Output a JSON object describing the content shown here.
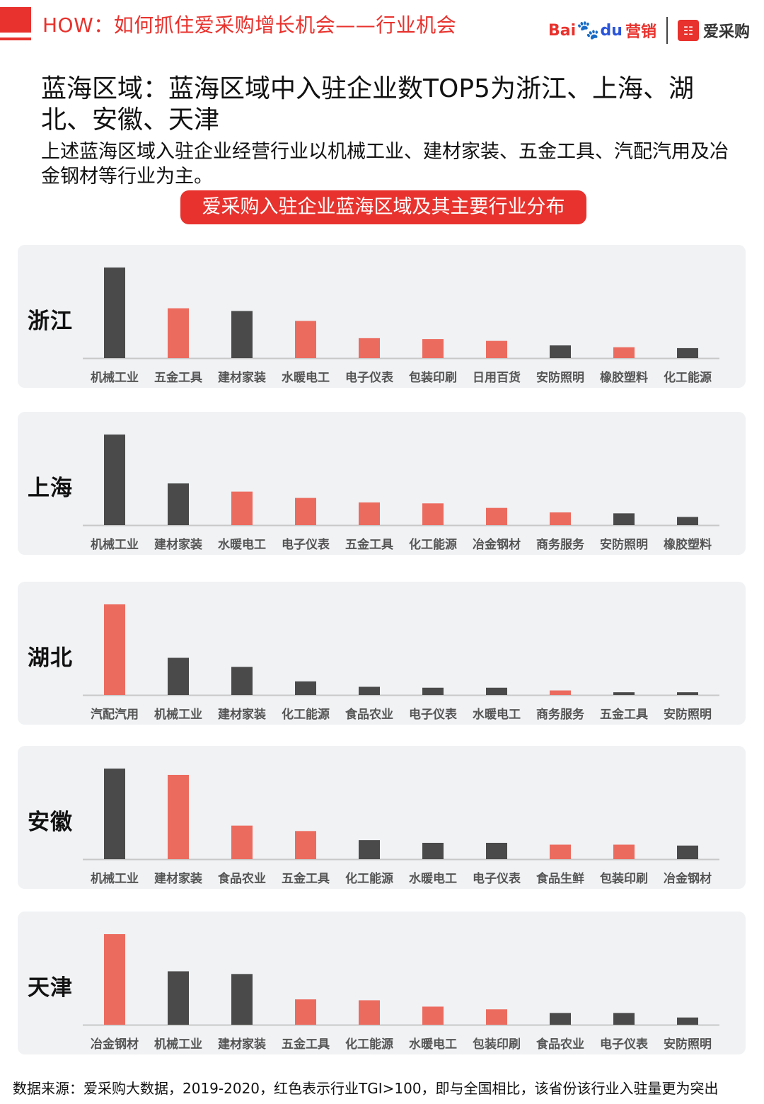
{
  "header": {
    "title": "HOW：如何抓住爱采购增长机会——行业机会",
    "baidu_logo_text": "Bai",
    "baidu_logo_du": "du",
    "baidu_logo_sub": "营销",
    "aicaigou_logo_text": "爱采购"
  },
  "main_title": "蓝海区域：蓝海区域中入驻企业数TOP5为浙江、上海、湖北、安徽、天津",
  "sub_text": "上述蓝海区域入驻企业经营行业以机械工业、建材家装、五金工具、汽配汽用及冶金钢材等行业为主。",
  "chart_heading": "爱采购入驻企业蓝海区域及其主要行业分布",
  "footnote": "数据来源：爱采购大数据，2019-2020，红色表示行业TGI>100，即与全国相比，该省份该行业入驻量更为突出",
  "colors": {
    "accent": "#e8322d",
    "highlight_bar": "#ec6b5f",
    "normal_bar": "#4a4a4a",
    "panel_bg": "#f0f2f4"
  },
  "chart_data": [
    {
      "type": "bar",
      "title": "浙江",
      "categories": [
        "机械工业",
        "五金工具",
        "建材家装",
        "水暖电工",
        "电子仪表",
        "包装印刷",
        "日用百货",
        "安防照明",
        "橡胶塑料",
        "化工能源"
      ],
      "values": [
        100,
        55,
        52,
        41,
        22,
        21,
        19,
        14,
        12,
        11
      ],
      "tgi_over_100": [
        false,
        true,
        false,
        true,
        true,
        true,
        true,
        false,
        true,
        false
      ],
      "ylim": [
        0,
        100
      ],
      "grid": false,
      "value_axis_shown": false
    },
    {
      "type": "bar",
      "title": "上海",
      "categories": [
        "机械工业",
        "建材家装",
        "水暖电工",
        "电子仪表",
        "五金工具",
        "化工能源",
        "冶金钢材",
        "商务服务",
        "安防照明",
        "橡胶塑料"
      ],
      "values": [
        100,
        46,
        37,
        30,
        25,
        24,
        19,
        14,
        13,
        9
      ],
      "tgi_over_100": [
        false,
        false,
        true,
        true,
        true,
        true,
        true,
        true,
        false,
        false
      ],
      "ylim": [
        0,
        100
      ],
      "grid": false,
      "value_axis_shown": false
    },
    {
      "type": "bar",
      "title": "湖北",
      "categories": [
        "汽配汽用",
        "机械工业",
        "建材家装",
        "化工能源",
        "食品农业",
        "电子仪表",
        "水暖电工",
        "商务服务",
        "五金工具",
        "安防照明"
      ],
      "values": [
        100,
        41,
        31,
        15,
        9,
        8,
        8,
        5,
        3,
        3
      ],
      "tgi_over_100": [
        true,
        false,
        false,
        false,
        false,
        false,
        false,
        true,
        false,
        false
      ],
      "ylim": [
        0,
        100
      ],
      "grid": false,
      "value_axis_shown": false
    },
    {
      "type": "bar",
      "title": "安徽",
      "categories": [
        "机械工业",
        "建材家装",
        "食品农业",
        "五金工具",
        "化工能源",
        "水暖电工",
        "电子仪表",
        "食品生鲜",
        "包装印刷",
        "冶金钢材"
      ],
      "values": [
        100,
        93,
        37,
        31,
        21,
        18,
        18,
        16,
        16,
        15
      ],
      "tgi_over_100": [
        false,
        true,
        true,
        true,
        false,
        false,
        false,
        true,
        true,
        false
      ],
      "ylim": [
        0,
        100
      ],
      "grid": false,
      "value_axis_shown": false
    },
    {
      "type": "bar",
      "title": "天津",
      "categories": [
        "冶金钢材",
        "机械工业",
        "建材家装",
        "五金工具",
        "化工能源",
        "水暖电工",
        "包装印刷",
        "食品农业",
        "电子仪表",
        "安防照明"
      ],
      "values": [
        100,
        59,
        56,
        28,
        27,
        20,
        17,
        13,
        13,
        8
      ],
      "tgi_over_100": [
        true,
        false,
        false,
        true,
        true,
        true,
        true,
        false,
        false,
        false
      ],
      "ylim": [
        0,
        100
      ],
      "grid": false,
      "value_axis_shown": false
    }
  ]
}
